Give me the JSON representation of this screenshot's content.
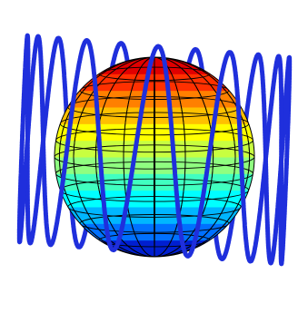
{
  "scene": {
    "subject": "sphere-with-helix",
    "band_colors": [
      "#001fd0",
      "#0070ff",
      "#00b6ff",
      "#00ffff",
      "#40ffc0",
      "#8fff80",
      "#c8ff40",
      "#ffff00",
      "#ffc000",
      "#ff8000",
      "#ff3000",
      "#e00000"
    ],
    "gridline_color": "#000000",
    "curve_color": "#1f2fdc",
    "curve_turns": 11,
    "curve_tilt_degrees": 14,
    "background": "#ffffff"
  }
}
